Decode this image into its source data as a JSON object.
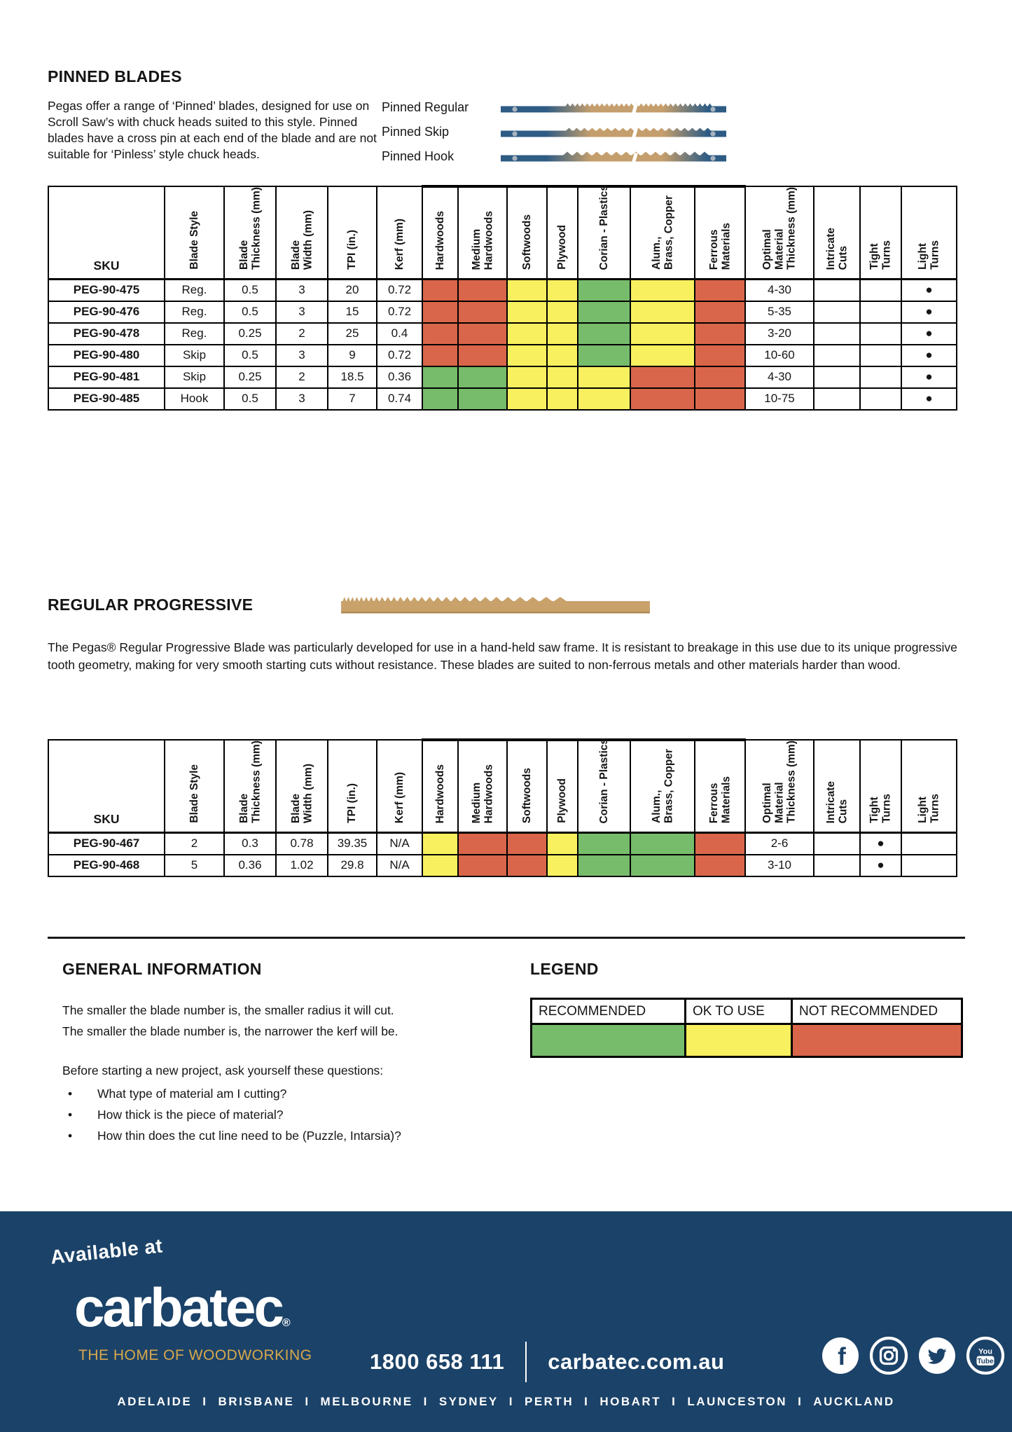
{
  "pinned": {
    "title": "PINNED BLADES",
    "intro": "Pegas offer a range of ‘Pinned’ blades, designed for use on Scroll Saw’s with chuck heads suited to this style. Pinned blades have a cross pin at each end of the blade and are not suitable for ‘Pinless’ style chuck heads.",
    "blade_rows": [
      {
        "label": "Pinned Regular"
      },
      {
        "label": "Pinned Skip"
      },
      {
        "label": "Pinned Hook"
      }
    ]
  },
  "table_columns": [
    "SKU",
    "Blade Style",
    "Blade\nThickness (mm)",
    "Blade\nWidth (mm)",
    "TPI (in.)",
    "Kerf (mm)",
    "Hardwoods",
    "Medium\nHardwoods",
    "Softwoods",
    "Plywood",
    "Corian  - Plastics",
    "Alum.,\nBrass, Copper",
    "Ferrous\nMaterials",
    "Optimal\nMaterial\nThickness (mm)",
    "Intricate\nCuts",
    "Tight\nTurns",
    "Light\nTurns"
  ],
  "pinned_table_rows": [
    [
      "PEG-90-475",
      "Reg.",
      "0.5",
      "3",
      "20",
      "0.72",
      "no",
      "no",
      "ok",
      "ok",
      "rec",
      "ok",
      "no",
      "4-30",
      "",
      "",
      "●"
    ],
    [
      "PEG-90-476",
      "Reg.",
      "0.5",
      "3",
      "15",
      "0.72",
      "no",
      "no",
      "ok",
      "ok",
      "rec",
      "ok",
      "no",
      "5-35",
      "",
      "",
      "●"
    ],
    [
      "PEG-90-478",
      "Reg.",
      "0.25",
      "2",
      "25",
      "0.4",
      "no",
      "no",
      "ok",
      "ok",
      "rec",
      "ok",
      "no",
      "3-20",
      "",
      "",
      "●"
    ],
    [
      "PEG-90-480",
      "Skip",
      "0.5",
      "3",
      "9",
      "0.72",
      "no",
      "no",
      "ok",
      "ok",
      "rec",
      "ok",
      "no",
      "10-60",
      "",
      "",
      "●"
    ],
    [
      "PEG-90-481",
      "Skip",
      "0.25",
      "2",
      "18.5",
      "0.36",
      "rec",
      "rec",
      "ok",
      "ok",
      "ok",
      "no",
      "no",
      "4-30",
      "",
      "",
      "●"
    ],
    [
      "PEG-90-485",
      "Hook",
      "0.5",
      "3",
      "7",
      "0.74",
      "rec",
      "rec",
      "ok",
      "ok",
      "ok",
      "no",
      "no",
      "10-75",
      "",
      "",
      "●"
    ]
  ],
  "progressive": {
    "title": "REGULAR PROGRESSIVE",
    "paragraph": "The Pegas® Regular Progressive Blade was particularly developed for use in a hand-held saw frame. It is resistant to breakage in this use due to its unique progressive tooth geometry, making for very smooth starting cuts without resistance. These blades are suited to non-ferrous metals and other materials harder than wood."
  },
  "progressive_table_rows": [
    [
      "PEG-90-467",
      "2",
      "0.3",
      "0.78",
      "39.35",
      "N/A",
      "ok",
      "no",
      "no",
      "ok",
      "rec",
      "rec",
      "no",
      "2-6",
      "",
      "●",
      ""
    ],
    [
      "PEG-90-468",
      "5",
      "0.36",
      "1.02",
      "29.8",
      "N/A",
      "ok",
      "no",
      "no",
      "ok",
      "rec",
      "rec",
      "no",
      "3-10",
      "",
      "●",
      ""
    ]
  ],
  "general_info": {
    "title": "GENERAL INFORMATION",
    "line1": "The smaller the blade number is, the smaller radius it will cut.",
    "line2": "The smaller the blade number is, the narrower the kerf will be.",
    "questions_intro": "Before starting a new project, ask yourself these questions:",
    "bullets": [
      "What type of material am I cutting?",
      "How thick is the piece of material?",
      "How thin does the cut line need to be (Puzzle, Intarsia)?"
    ]
  },
  "legend": {
    "title": "LEGEND",
    "items": [
      {
        "label": "RECOMMENDED",
        "key": "rec"
      },
      {
        "label": "OK TO USE",
        "key": "ok"
      },
      {
        "label": "NOT RECOMMENDED",
        "key": "no"
      }
    ]
  },
  "colors": {
    "recommended": "#76BC6B",
    "ok_to_use": "#F9F05F",
    "not_recommended": "#D9664A",
    "footer_bg": "#1B4268",
    "gold": "#D9A84C",
    "blade_steel_blue": "#2D5B84",
    "blade_tan": "#C49E6C"
  },
  "footer": {
    "available_at": "Available at",
    "brand": "carbatec",
    "registered": "®",
    "tagline": "THE HOME OF WOODWORKING",
    "phone": "1800 658 111",
    "website": "carbatec.com.au",
    "social": [
      "facebook-icon",
      "instagram-icon",
      "twitter-icon",
      "youtube-icon"
    ],
    "cities": [
      "ADELAIDE",
      "BRISBANE",
      "MELBOURNE",
      "SYDNEY",
      "PERTH",
      "HOBART",
      "LAUNCESTON",
      "AUCKLAND"
    ]
  }
}
